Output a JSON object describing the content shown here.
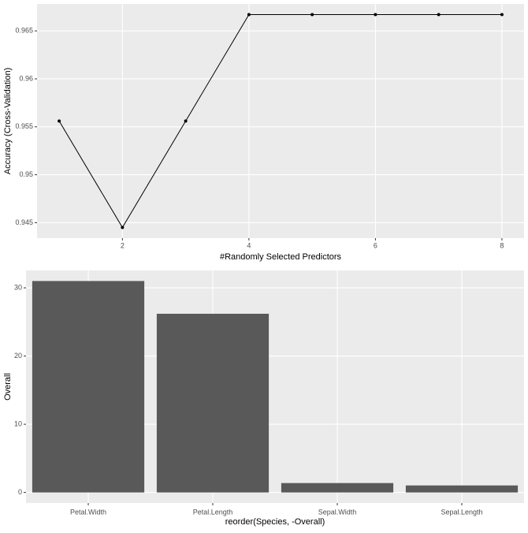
{
  "chart_data": [
    {
      "type": "line",
      "x": [
        1,
        2,
        3,
        4,
        5,
        6,
        7,
        8
      ],
      "values": [
        0.9556,
        0.9445,
        0.9556,
        0.9667,
        0.9667,
        0.9667,
        0.9667,
        0.9667
      ],
      "color": "#000000",
      "xlim": [
        0.65,
        8.35
      ],
      "xticks": [
        2,
        4,
        6,
        8
      ],
      "ylim": [
        0.94339,
        0.96781
      ],
      "yticks": [
        0.945,
        0.95,
        0.955,
        0.96,
        0.965
      ],
      "x_label": "#Randomly Selected Predictors",
      "y_label": "Accuracy (Cross-Validation)",
      "grid": true
    },
    {
      "type": "bar",
      "categories": [
        "Petal.Width",
        "Petal.Length",
        "Sepal.Width",
        "Sepal.Length"
      ],
      "values": [
        31.0,
        26.2,
        1.38,
        1.03
      ],
      "color": "#595959",
      "ylim": [
        -1.55,
        32.55
      ],
      "yticks": [
        0,
        10,
        20,
        30
      ],
      "x_label": "reorder(Species, -Overall)",
      "y_label": "Overall",
      "grid": true
    }
  ]
}
